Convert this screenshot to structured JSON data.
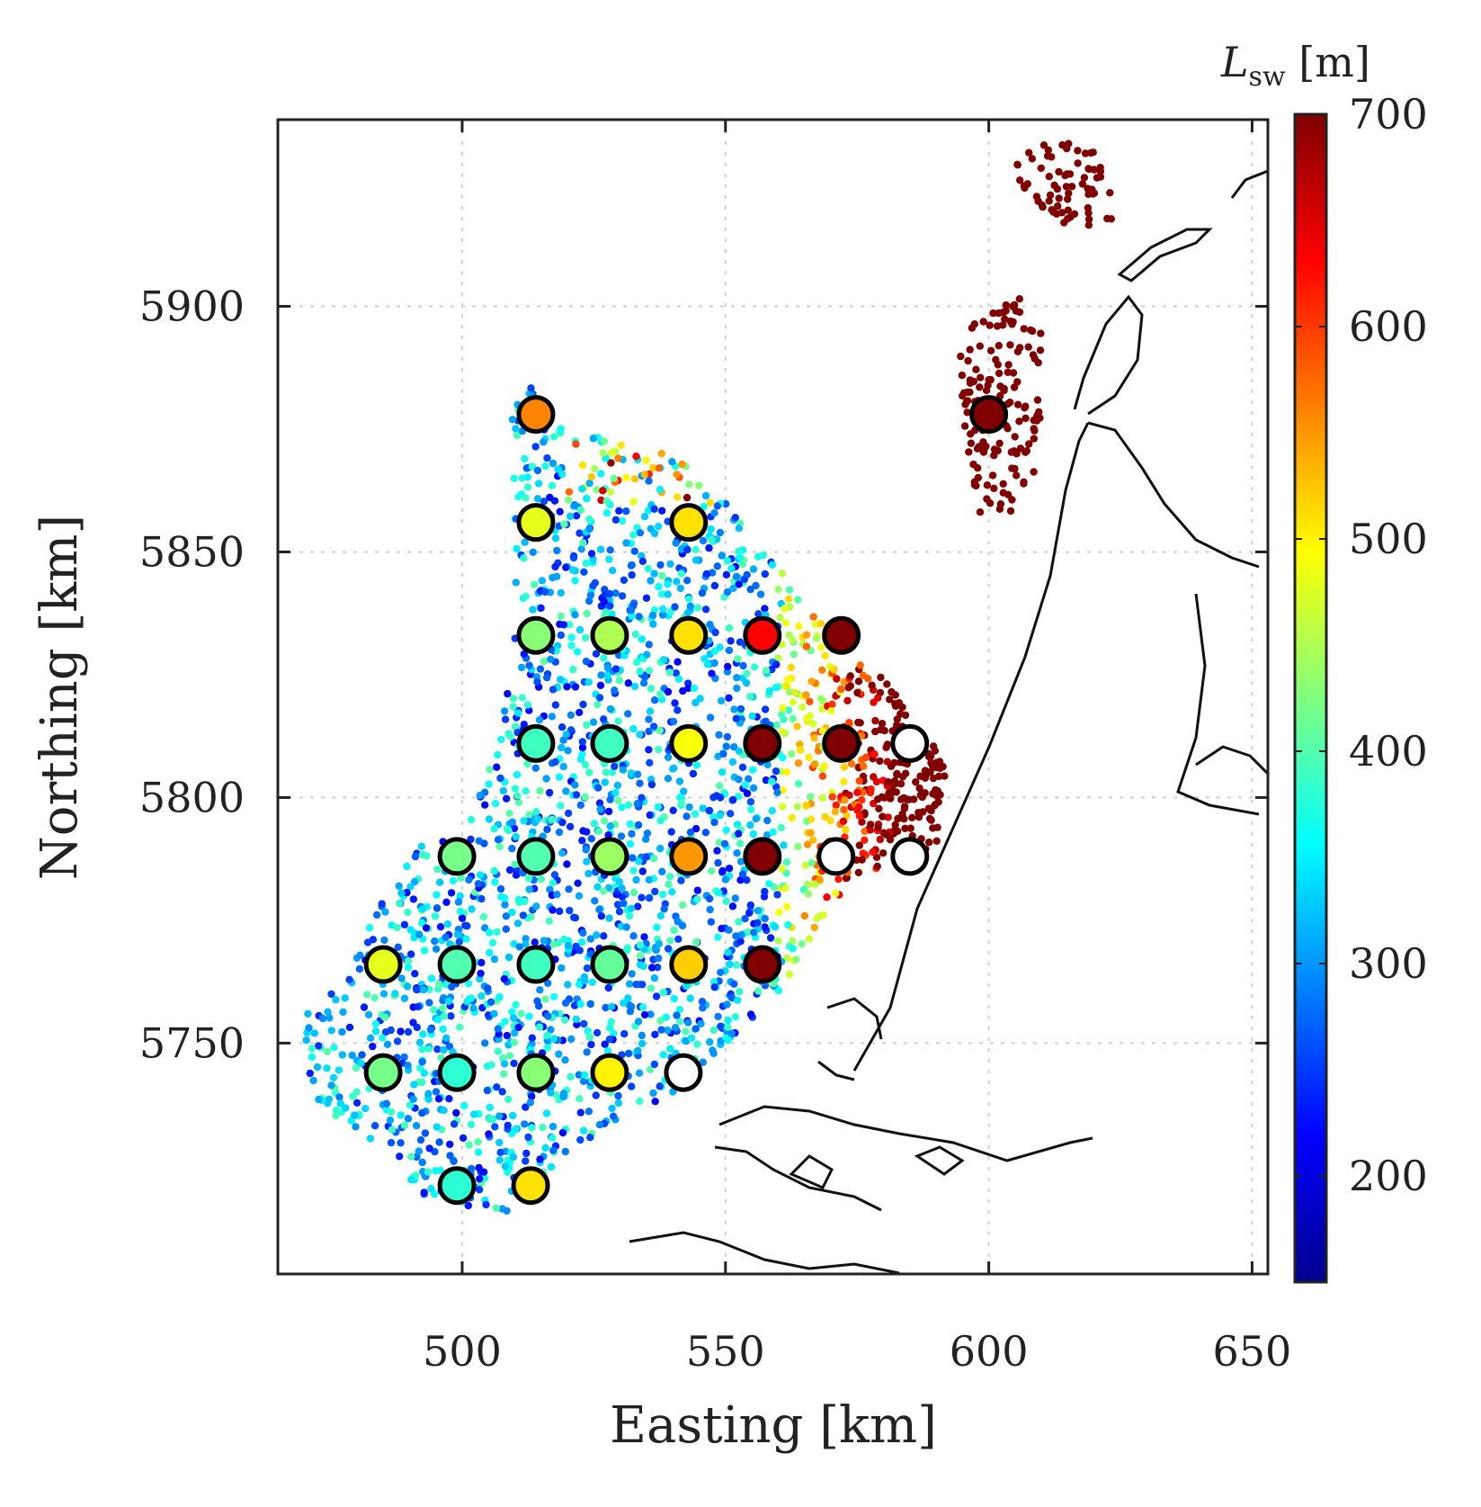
{
  "chart_data": {
    "type": "scatter",
    "title": "",
    "xlabel": "Easting [km]",
    "ylabel": "Northing [km]",
    "xlim": [
      465,
      653
    ],
    "ylim": [
      5703,
      5938
    ],
    "xticks": [
      500,
      550,
      600,
      650
    ],
    "yticks": [
      5750,
      5800,
      5850,
      5900
    ],
    "grid": true,
    "colorbar": {
      "label_main": "L",
      "label_sub": "sw",
      "label_unit": " [m]",
      "colormap": "jet",
      "range": [
        150,
        700
      ],
      "ticks": [
        200,
        300,
        400,
        500,
        600,
        700
      ]
    },
    "stations": [
      {
        "x": 514,
        "y": 5878,
        "value": 560
      },
      {
        "x": 600,
        "y": 5878,
        "value": 700
      },
      {
        "x": 514,
        "y": 5856,
        "value": 480
      },
      {
        "x": 543,
        "y": 5856,
        "value": 510
      },
      {
        "x": 514,
        "y": 5833,
        "value": 430
      },
      {
        "x": 528,
        "y": 5833,
        "value": 450
      },
      {
        "x": 543,
        "y": 5833,
        "value": 510
      },
      {
        "x": 557,
        "y": 5833,
        "value": 630
      },
      {
        "x": 572,
        "y": 5833,
        "value": 700
      },
      {
        "x": 514,
        "y": 5811,
        "value": 390
      },
      {
        "x": 528,
        "y": 5811,
        "value": 390
      },
      {
        "x": 543,
        "y": 5811,
        "value": 490
      },
      {
        "x": 557,
        "y": 5811,
        "value": 700
      },
      {
        "x": 572,
        "y": 5811,
        "value": 700
      },
      {
        "x": 585,
        "y": 5811,
        "value": null
      },
      {
        "x": 499,
        "y": 5788,
        "value": 420
      },
      {
        "x": 514,
        "y": 5788,
        "value": 400
      },
      {
        "x": 528,
        "y": 5788,
        "value": 440
      },
      {
        "x": 543,
        "y": 5788,
        "value": 550
      },
      {
        "x": 557,
        "y": 5788,
        "value": 700
      },
      {
        "x": 571,
        "y": 5788,
        "value": null
      },
      {
        "x": 585,
        "y": 5788,
        "value": null
      },
      {
        "x": 485,
        "y": 5766,
        "value": 480
      },
      {
        "x": 499,
        "y": 5766,
        "value": 400
      },
      {
        "x": 514,
        "y": 5766,
        "value": 390
      },
      {
        "x": 528,
        "y": 5766,
        "value": 410
      },
      {
        "x": 543,
        "y": 5766,
        "value": 520
      },
      {
        "x": 557,
        "y": 5766,
        "value": 700
      },
      {
        "x": 485,
        "y": 5744,
        "value": 420
      },
      {
        "x": 499,
        "y": 5744,
        "value": 380
      },
      {
        "x": 514,
        "y": 5744,
        "value": 430
      },
      {
        "x": 528,
        "y": 5744,
        "value": 500
      },
      {
        "x": 542,
        "y": 5744,
        "value": null
      },
      {
        "x": 499,
        "y": 5721,
        "value": 380
      },
      {
        "x": 513,
        "y": 5721,
        "value": 510
      }
    ]
  }
}
